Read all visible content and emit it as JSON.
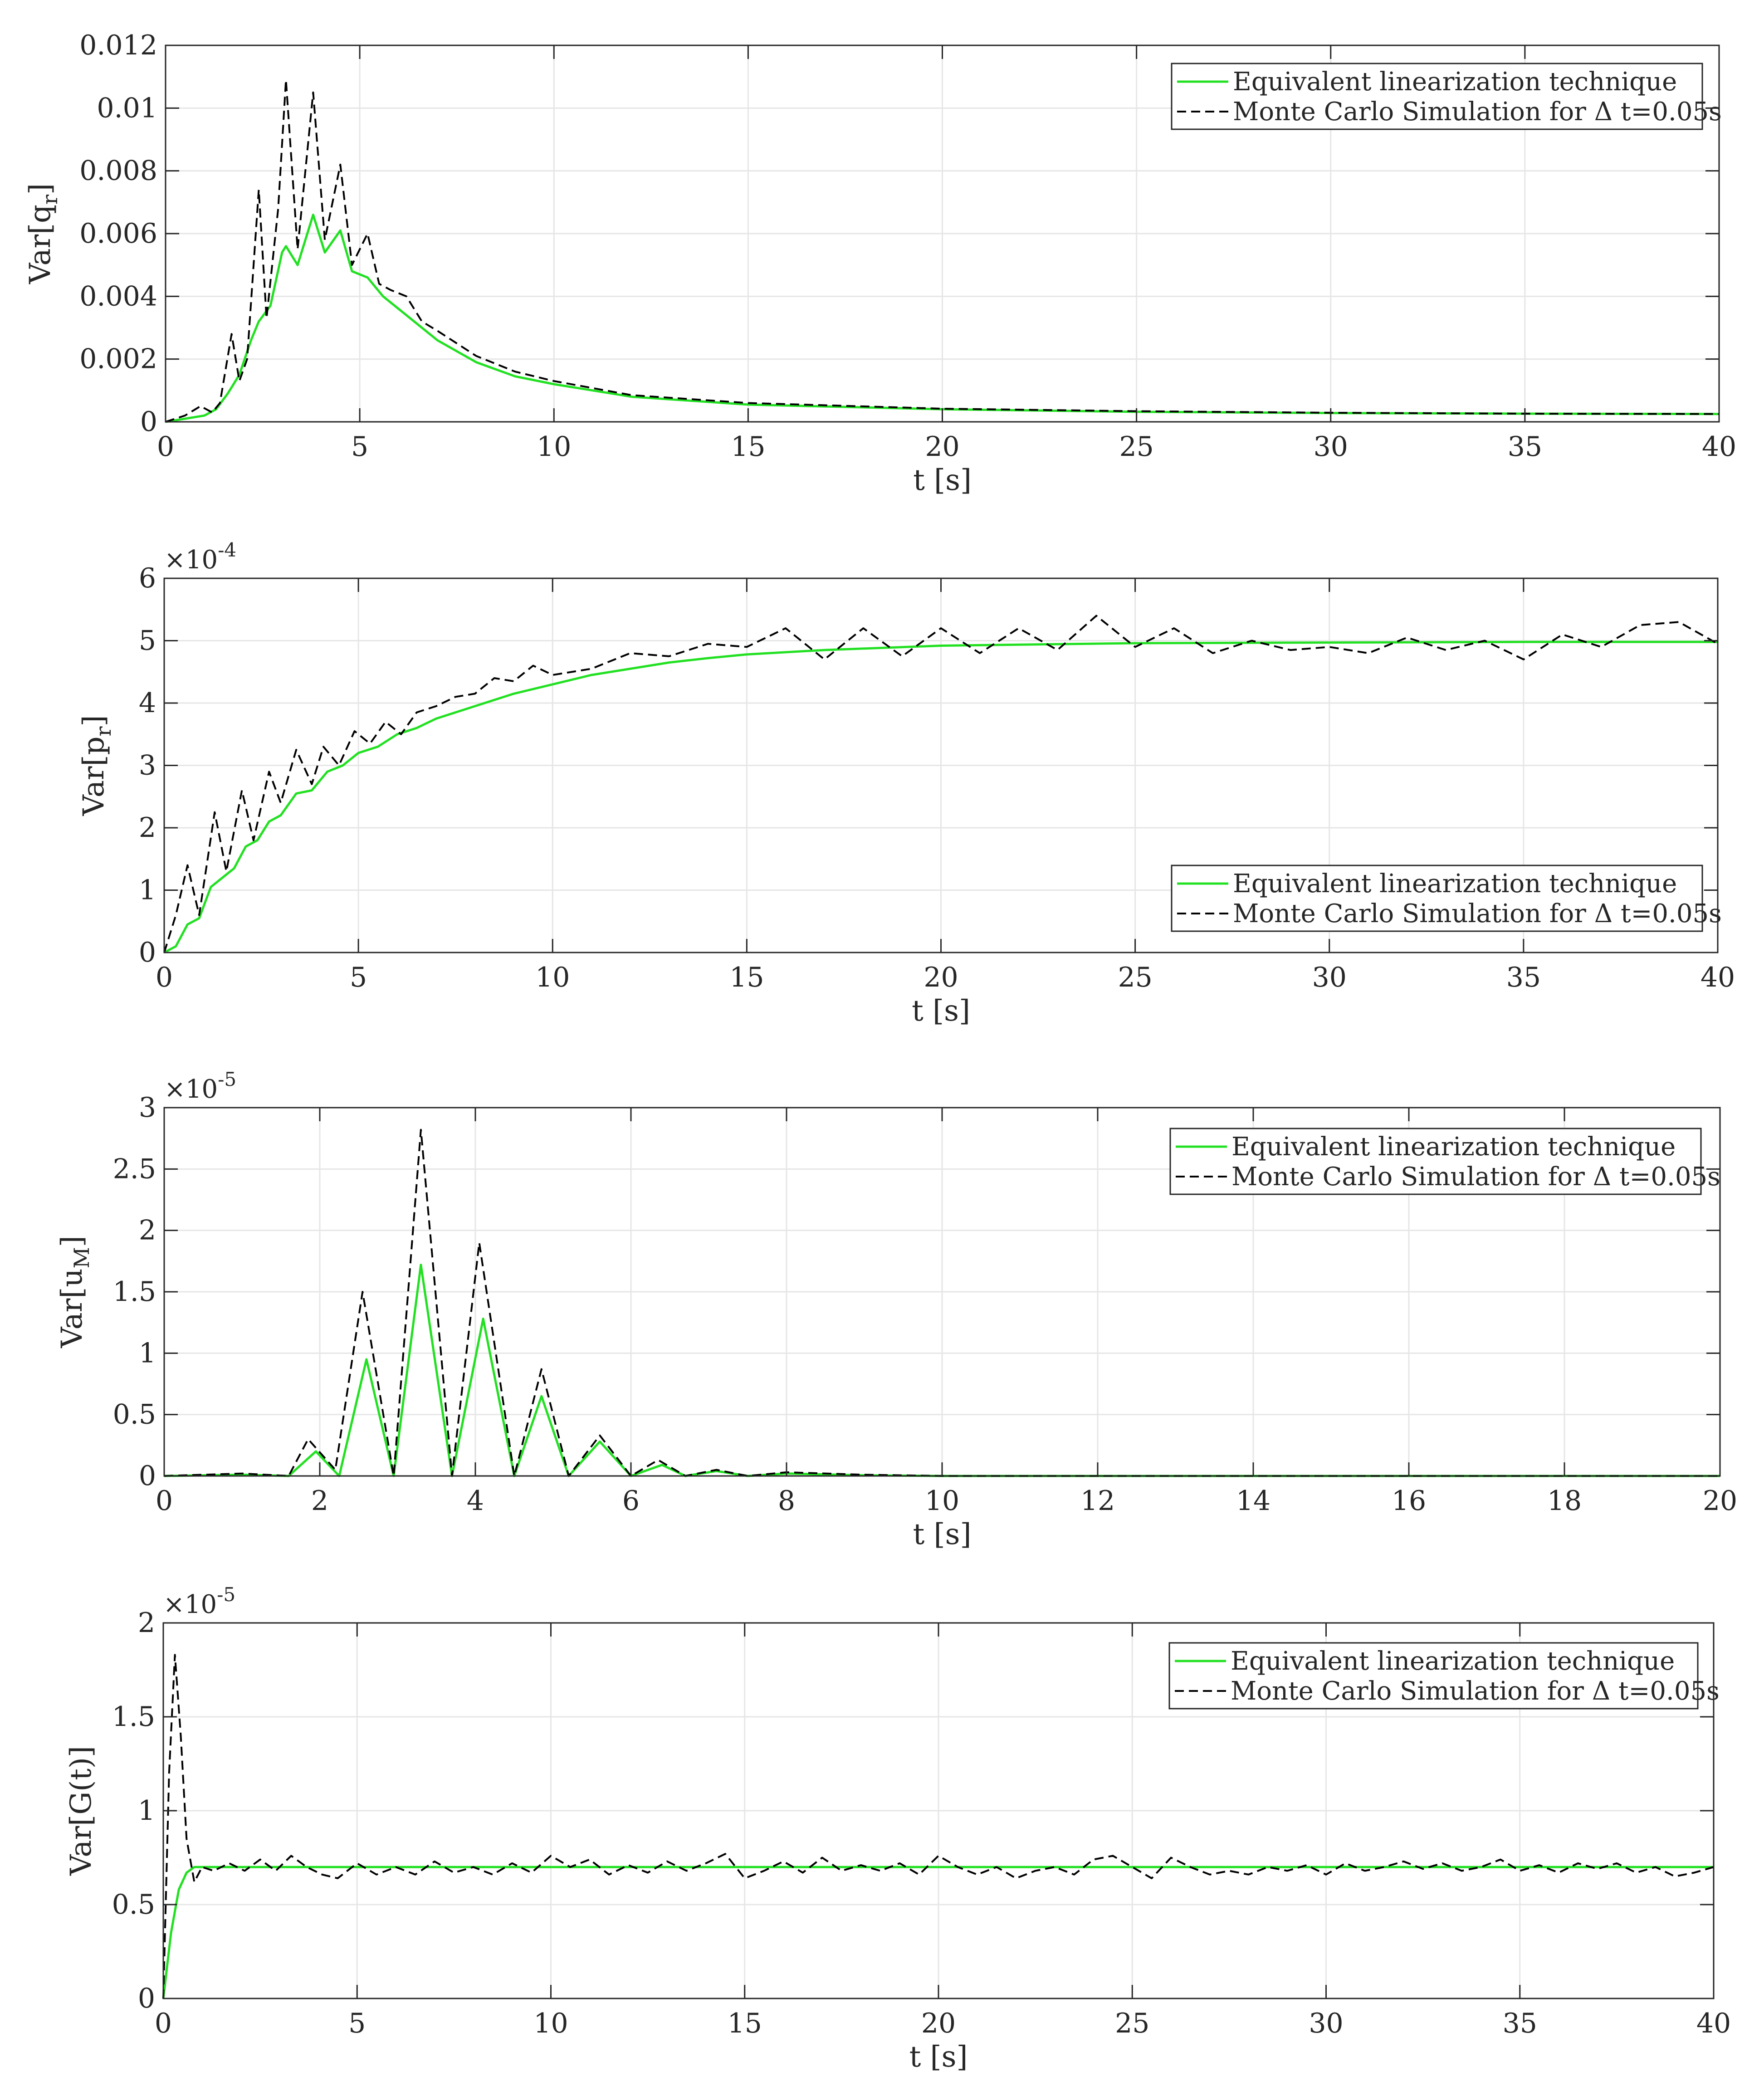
{
  "figure": {
    "colors": {
      "green": "#22e022",
      "black": "#000000",
      "grid": "#e6e6e6",
      "axis": "#262626"
    }
  },
  "chart_data": [
    {
      "type": "line",
      "id": "var-qr",
      "ylabel_main": "Var[q",
      "ylabel_sub": "r",
      "ylabel_end": "]",
      "exponent": "",
      "xlabel": "t [s]",
      "xlim": [
        0,
        40
      ],
      "ylim": [
        0,
        0.012
      ],
      "xticks": [
        0,
        5,
        10,
        15,
        20,
        25,
        30,
        35,
        40
      ],
      "xtick_labels": [
        "0",
        "5",
        "10",
        "15",
        "20",
        "25",
        "30",
        "35",
        "40"
      ],
      "yticks": [
        0,
        0.002,
        0.004,
        0.006,
        0.008,
        0.01,
        0.012
      ],
      "ytick_labels": [
        "0",
        "0.002",
        "0.004",
        "0.006",
        "0.008",
        "0.01",
        "0.012"
      ],
      "grid": true,
      "legend_position": "top-right",
      "series": [
        {
          "name": "Equivalent linearization technique",
          "style": "solid-green",
          "x": [
            0,
            0.5,
            1,
            1.3,
            1.6,
            1.9,
            2.2,
            2.4,
            2.7,
            3.0,
            3.1,
            3.4,
            3.8,
            4.1,
            4.5,
            4.8,
            5.2,
            5.6,
            6,
            7,
            8,
            9,
            10,
            12,
            15,
            20,
            25,
            30,
            35,
            40
          ],
          "y": [
            0,
            0.0001,
            0.0002,
            0.0004,
            0.0009,
            0.0015,
            0.0026,
            0.0032,
            0.0037,
            0.0054,
            0.0056,
            0.005,
            0.0066,
            0.0054,
            0.0061,
            0.0048,
            0.0046,
            0.004,
            0.0036,
            0.0026,
            0.0019,
            0.00145,
            0.0012,
            0.0008,
            0.00055,
            0.0004,
            0.00032,
            0.00028,
            0.00026,
            0.00025
          ]
        },
        {
          "name": "Monte Carlo Simulation for Δ t=0.05s",
          "style": "dashed-black",
          "x": [
            0,
            0.5,
            0.9,
            1.2,
            1.4,
            1.7,
            1.9,
            2.1,
            2.4,
            2.6,
            2.9,
            3.1,
            3.4,
            3.8,
            4.1,
            4.5,
            4.8,
            5.2,
            5.5,
            5.8,
            6.2,
            6.6,
            7,
            8,
            9,
            10,
            12,
            15,
            20,
            25,
            30,
            35,
            40
          ],
          "y": [
            0,
            0.0002,
            0.0005,
            0.0003,
            0.0006,
            0.0028,
            0.0013,
            0.002,
            0.0074,
            0.0033,
            0.0068,
            0.0109,
            0.0055,
            0.0105,
            0.0058,
            0.0082,
            0.005,
            0.006,
            0.0044,
            0.0042,
            0.004,
            0.0032,
            0.0029,
            0.0021,
            0.0016,
            0.0013,
            0.00085,
            0.0006,
            0.00042,
            0.00034,
            0.00029,
            0.00026,
            0.00025
          ]
        }
      ]
    },
    {
      "type": "line",
      "id": "var-pr",
      "ylabel_main": "Var[p",
      "ylabel_sub": "r",
      "ylabel_end": "]",
      "exponent": "-4",
      "xlabel": "t [s]",
      "xlim": [
        0,
        40
      ],
      "ylim": [
        0,
        6
      ],
      "xticks": [
        0,
        5,
        10,
        15,
        20,
        25,
        30,
        35,
        40
      ],
      "xtick_labels": [
        "0",
        "5",
        "10",
        "15",
        "20",
        "25",
        "30",
        "35",
        "40"
      ],
      "yticks": [
        0,
        1,
        2,
        3,
        4,
        5,
        6
      ],
      "ytick_labels": [
        "0",
        "1",
        "2",
        "3",
        "4",
        "5",
        "6"
      ],
      "grid": true,
      "legend_position": "bottom-right",
      "series": [
        {
          "name": "Equivalent linearization technique",
          "style": "solid-green",
          "x": [
            0,
            0.3,
            0.6,
            0.9,
            1.2,
            1.5,
            1.8,
            2.1,
            2.4,
            2.7,
            3.0,
            3.4,
            3.8,
            4.2,
            4.6,
            5.0,
            5.5,
            6,
            6.5,
            7,
            8,
            9,
            10,
            11,
            12,
            13,
            14,
            15,
            17,
            20,
            25,
            30,
            35,
            40
          ],
          "y": [
            0,
            0.1,
            0.45,
            0.55,
            1.05,
            1.2,
            1.35,
            1.7,
            1.8,
            2.1,
            2.2,
            2.55,
            2.6,
            2.9,
            3.0,
            3.2,
            3.3,
            3.5,
            3.6,
            3.75,
            3.95,
            4.15,
            4.3,
            4.45,
            4.55,
            4.65,
            4.72,
            4.78,
            4.85,
            4.92,
            4.96,
            4.97,
            4.98,
            4.98
          ]
        },
        {
          "name": "Monte Carlo Simulation for Δ t=0.05s",
          "style": "dashed-black",
          "x": [
            0,
            0.3,
            0.6,
            0.9,
            1.3,
            1.6,
            2.0,
            2.3,
            2.7,
            3.0,
            3.4,
            3.8,
            4.1,
            4.5,
            4.9,
            5.3,
            5.7,
            6.1,
            6.5,
            7,
            7.5,
            8,
            8.5,
            9,
            9.5,
            10,
            11,
            12,
            13,
            14,
            15,
            16,
            17,
            18,
            19,
            20,
            21,
            22,
            23,
            24,
            25,
            26,
            27,
            28,
            29,
            30,
            31,
            32,
            33,
            34,
            35,
            36,
            37,
            38,
            39,
            40
          ],
          "y": [
            0,
            0.6,
            1.4,
            0.6,
            2.25,
            1.3,
            2.6,
            1.8,
            2.9,
            2.4,
            3.25,
            2.7,
            3.3,
            3.0,
            3.55,
            3.35,
            3.7,
            3.5,
            3.85,
            3.95,
            4.1,
            4.15,
            4.4,
            4.35,
            4.6,
            4.45,
            4.55,
            4.8,
            4.75,
            4.95,
            4.9,
            5.2,
            4.7,
            5.2,
            4.75,
            5.2,
            4.8,
            5.2,
            4.85,
            5.4,
            4.9,
            5.2,
            4.8,
            5.0,
            4.85,
            4.9,
            4.8,
            5.05,
            4.85,
            5.0,
            4.7,
            5.1,
            4.9,
            5.25,
            5.3,
            4.95
          ]
        }
      ]
    },
    {
      "type": "line",
      "id": "var-um",
      "ylabel_main": "Var[u",
      "ylabel_sub": "M",
      "ylabel_end": "]",
      "exponent": "-5",
      "xlabel": "t [s]",
      "xlim": [
        0,
        20
      ],
      "ylim": [
        0,
        3
      ],
      "xticks": [
        0,
        2,
        4,
        6,
        8,
        10,
        12,
        14,
        16,
        18,
        20
      ],
      "xtick_labels": [
        "0",
        "2",
        "4",
        "6",
        "8",
        "10",
        "12",
        "14",
        "16",
        "18",
        "20"
      ],
      "yticks": [
        0,
        0.5,
        1,
        1.5,
        2,
        2.5,
        3
      ],
      "ytick_labels": [
        "0",
        "0.5",
        "1",
        "1.5",
        "2",
        "2.5",
        "3"
      ],
      "grid": true,
      "legend_position": "top-right",
      "series": [
        {
          "name": "Equivalent linearization technique",
          "style": "solid-green",
          "x": [
            0,
            1.0,
            1.6,
            1.95,
            2.25,
            2.6,
            2.95,
            3.3,
            3.7,
            4.1,
            4.5,
            4.85,
            5.2,
            5.6,
            6.0,
            6.4,
            6.7,
            7.1,
            7.5,
            8,
            9,
            10,
            12,
            14,
            16,
            18,
            20
          ],
          "y": [
            0,
            0.01,
            0.0,
            0.2,
            0.0,
            0.95,
            0.0,
            1.72,
            0.0,
            1.28,
            0.0,
            0.65,
            0.0,
            0.28,
            0.0,
            0.09,
            0.0,
            0.04,
            0.0,
            0.02,
            0.005,
            0.0,
            0.0,
            0.0,
            0.0,
            0.0,
            0.0
          ]
        },
        {
          "name": "Monte Carlo Simulation for Δ t=0.05s",
          "style": "dashed-black",
          "x": [
            0,
            1.0,
            1.6,
            1.85,
            2.2,
            2.55,
            2.95,
            3.3,
            3.7,
            4.05,
            4.5,
            4.85,
            5.2,
            5.6,
            6.0,
            6.35,
            6.7,
            7.1,
            7.5,
            8,
            9,
            10,
            12,
            14,
            16,
            18,
            20
          ],
          "y": [
            0,
            0.02,
            0.0,
            0.3,
            0.05,
            1.5,
            0.0,
            2.82,
            0.0,
            1.9,
            0.0,
            0.87,
            0.0,
            0.33,
            0.0,
            0.13,
            0.0,
            0.05,
            0.0,
            0.03,
            0.01,
            0.0,
            0.0,
            0.0,
            0.0,
            0.0,
            0.0
          ]
        }
      ]
    },
    {
      "type": "line",
      "id": "var-gt",
      "ylabel_main": "Var[G(t)]",
      "ylabel_sub": "",
      "ylabel_end": "",
      "exponent": "-5",
      "xlabel": "t [s]",
      "xlim": [
        0,
        40
      ],
      "ylim": [
        0,
        2
      ],
      "xticks": [
        0,
        5,
        10,
        15,
        20,
        25,
        30,
        35,
        40
      ],
      "xtick_labels": [
        "0",
        "5",
        "10",
        "15",
        "20",
        "25",
        "30",
        "35",
        "40"
      ],
      "yticks": [
        0,
        0.5,
        1,
        1.5,
        2
      ],
      "ytick_labels": [
        "0",
        "0.5",
        "1",
        "1.5",
        "2"
      ],
      "grid": true,
      "legend_position": "top-right",
      "series": [
        {
          "name": "Equivalent linearization technique",
          "style": "solid-green",
          "x": [
            0,
            0.2,
            0.4,
            0.6,
            0.8,
            1.0,
            1.5,
            2,
            5,
            10,
            15,
            20,
            25,
            30,
            35,
            40
          ],
          "y": [
            0,
            0.35,
            0.58,
            0.67,
            0.7,
            0.7,
            0.7,
            0.7,
            0.7,
            0.7,
            0.7,
            0.7,
            0.7,
            0.7,
            0.7,
            0.7
          ]
        },
        {
          "name": "Monte Carlo Simulation for Δ t=0.05s",
          "style": "dashed-black",
          "x": [
            0,
            0.15,
            0.3,
            0.45,
            0.6,
            0.8,
            1.0,
            1.3,
            1.7,
            2.1,
            2.5,
            2.9,
            3.3,
            3.7,
            4.1,
            4.5,
            5.0,
            5.5,
            6.0,
            6.5,
            7.0,
            7.5,
            8.0,
            8.5,
            9.0,
            9.5,
            10.0,
            10.5,
            11.0,
            11.5,
            12.0,
            12.5,
            13.0,
            13.5,
            14.0,
            14.5,
            15.0,
            15.5,
            16.0,
            16.5,
            17.0,
            17.5,
            18.0,
            18.5,
            19.0,
            19.5,
            20.0,
            20.5,
            21.0,
            21.5,
            22.0,
            22.5,
            23.0,
            23.5,
            24.0,
            24.5,
            25.0,
            25.5,
            26.0,
            26.5,
            27.0,
            27.5,
            28.0,
            28.5,
            29.0,
            29.5,
            30.0,
            30.5,
            31.0,
            31.5,
            32.0,
            32.5,
            33.0,
            33.5,
            34.0,
            34.5,
            35.0,
            35.5,
            36.0,
            36.5,
            37.0,
            37.5,
            38.0,
            38.5,
            39.0,
            39.5,
            40.0
          ],
          "y": [
            0,
            1.2,
            1.83,
            1.4,
            0.85,
            0.62,
            0.7,
            0.68,
            0.72,
            0.68,
            0.74,
            0.68,
            0.76,
            0.7,
            0.66,
            0.64,
            0.72,
            0.66,
            0.7,
            0.66,
            0.73,
            0.67,
            0.7,
            0.66,
            0.72,
            0.67,
            0.76,
            0.7,
            0.74,
            0.66,
            0.71,
            0.67,
            0.73,
            0.68,
            0.72,
            0.77,
            0.64,
            0.68,
            0.73,
            0.67,
            0.75,
            0.68,
            0.71,
            0.68,
            0.72,
            0.66,
            0.76,
            0.7,
            0.66,
            0.7,
            0.64,
            0.68,
            0.7,
            0.66,
            0.74,
            0.76,
            0.7,
            0.64,
            0.75,
            0.7,
            0.66,
            0.68,
            0.66,
            0.7,
            0.68,
            0.71,
            0.66,
            0.72,
            0.68,
            0.7,
            0.73,
            0.69,
            0.72,
            0.68,
            0.7,
            0.74,
            0.68,
            0.71,
            0.67,
            0.72,
            0.69,
            0.72,
            0.67,
            0.7,
            0.65,
            0.67,
            0.7
          ]
        }
      ]
    }
  ]
}
